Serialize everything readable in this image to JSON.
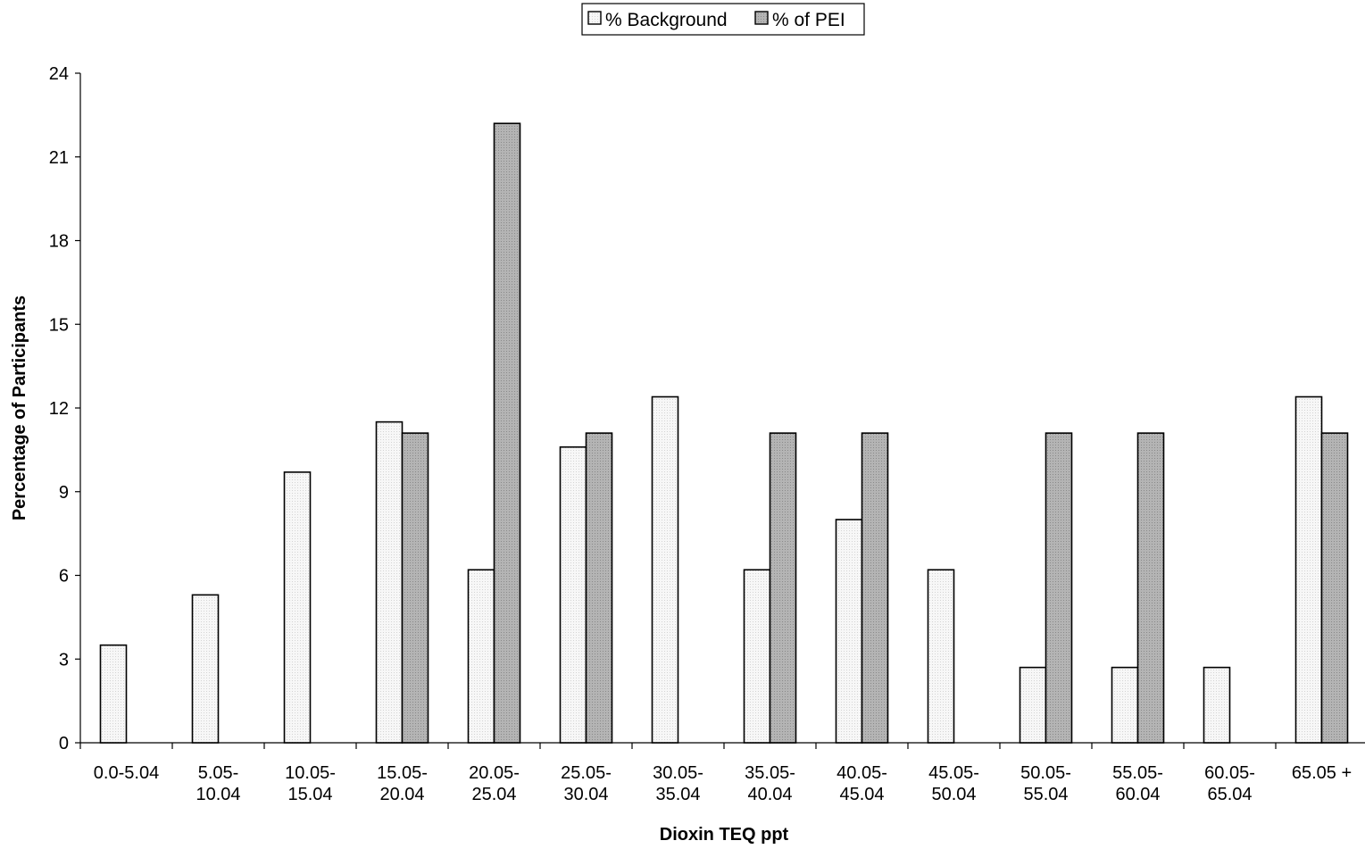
{
  "chart_data": {
    "type": "bar",
    "title": "",
    "xlabel": "Dioxin TEQ ppt",
    "ylabel": "Percentage of Participants",
    "ylim": [
      0,
      24
    ],
    "yticks": [
      0,
      3,
      6,
      9,
      12,
      15,
      18,
      21,
      24
    ],
    "grid": false,
    "legend_position": "top-center",
    "categories": [
      [
        "0.0-5.04"
      ],
      [
        "5.05-",
        "10.04"
      ],
      [
        "10.05-",
        "15.04"
      ],
      [
        "15.05-",
        "20.04"
      ],
      [
        "20.05-",
        "25.04"
      ],
      [
        "25.05-",
        "30.04"
      ],
      [
        "30.05-",
        "35.04"
      ],
      [
        "35.05-",
        "40.04"
      ],
      [
        "40.05-",
        "45.04"
      ],
      [
        "45.05-",
        "50.04"
      ],
      [
        "50.05-",
        "55.04"
      ],
      [
        "55.05-",
        "60.04"
      ],
      [
        "60.05-",
        "65.04"
      ],
      [
        "65.05 +"
      ]
    ],
    "series": [
      {
        "name": "% Background",
        "color": "#f0f0f0",
        "values": [
          3.5,
          5.3,
          9.7,
          11.5,
          6.2,
          10.6,
          12.4,
          6.2,
          8.0,
          6.2,
          2.7,
          2.7,
          2.7,
          12.4
        ]
      },
      {
        "name": "% of PEI",
        "color": "#a9a9a9",
        "values": [
          0,
          0,
          0,
          11.1,
          22.2,
          11.1,
          0,
          11.1,
          11.1,
          0,
          11.1,
          11.1,
          0,
          11.1
        ]
      }
    ]
  }
}
